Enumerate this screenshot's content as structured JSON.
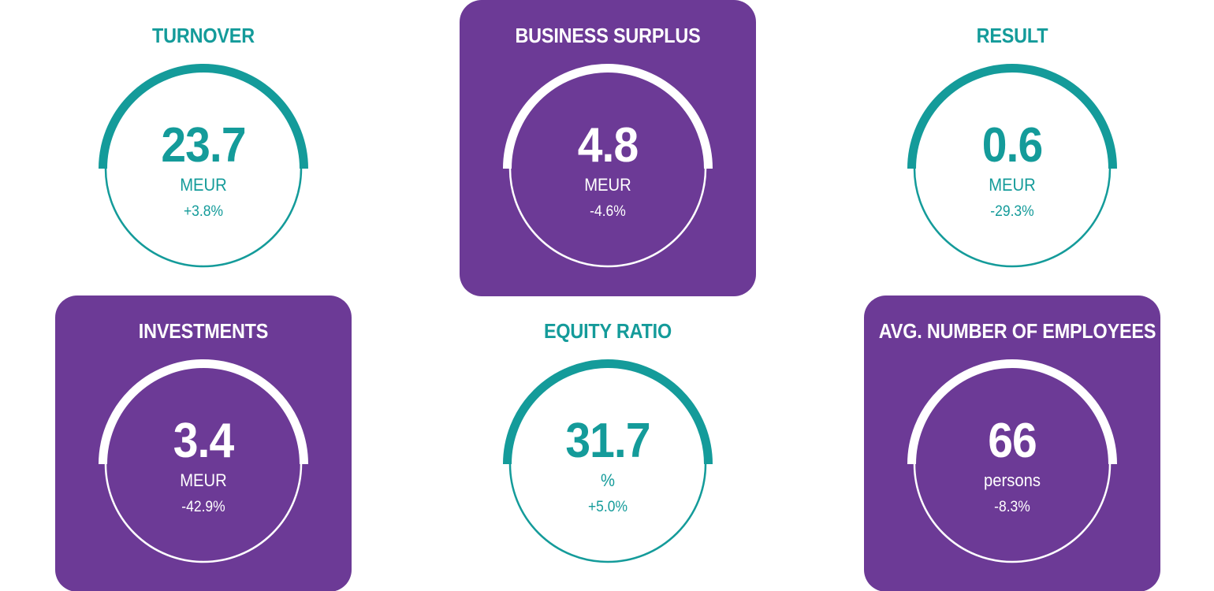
{
  "colors": {
    "teal": "#149b9a",
    "purple": "#6c3a96",
    "white": "#ffffff"
  },
  "kpis": [
    {
      "title": "TURNOVER",
      "value": "23.7",
      "unit": "MEUR",
      "change": "+3.8%",
      "style": "plain"
    },
    {
      "title": "BUSINESS SURPLUS",
      "value": "4.8",
      "unit": "MEUR",
      "change": "-4.6%",
      "style": "purple"
    },
    {
      "title": "RESULT",
      "value": "0.6",
      "unit": "MEUR",
      "change": "-29.3%",
      "style": "plain"
    },
    {
      "title": "INVESTMENTS",
      "value": "3.4",
      "unit": "MEUR",
      "change": "-42.9%",
      "style": "purple"
    },
    {
      "title": "EQUITY RATIO",
      "value": "31.7",
      "unit": "%",
      "change": "+5.0%",
      "style": "plain"
    },
    {
      "title": "AVG. NUMBER OF EMPLOYEES",
      "value": "66",
      "unit": "persons",
      "change": "-8.3%",
      "style": "purple"
    }
  ]
}
